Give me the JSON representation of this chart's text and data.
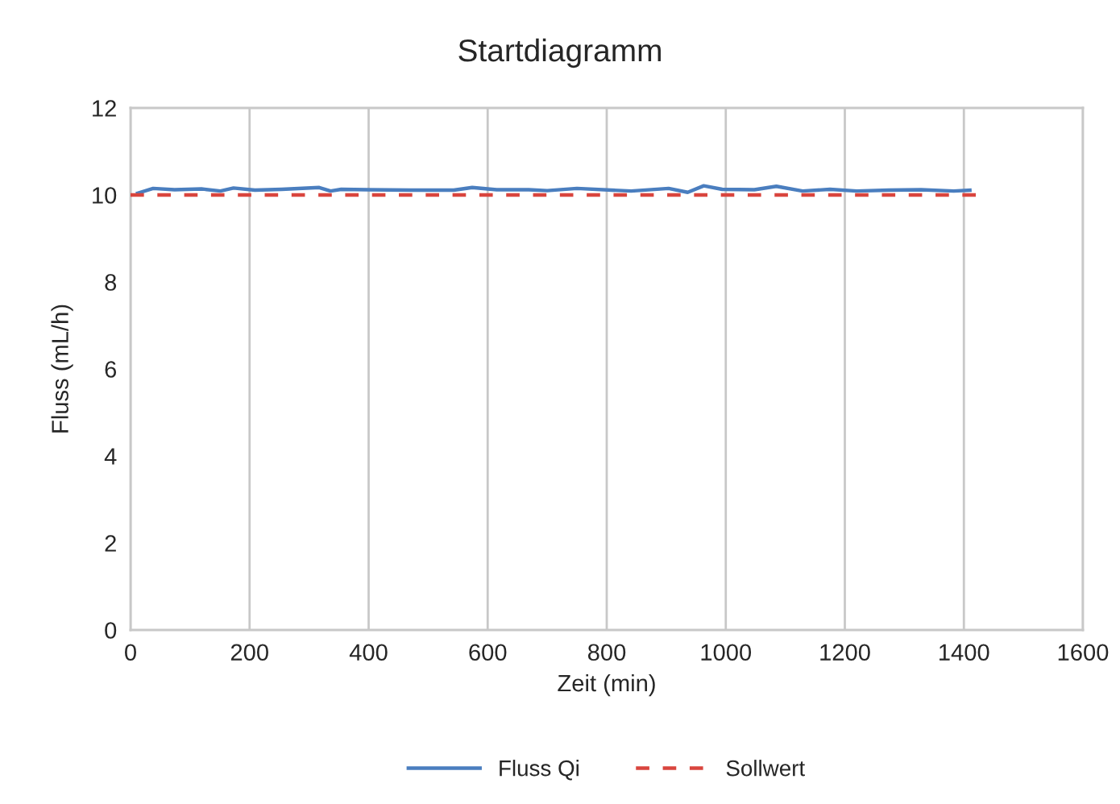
{
  "chart_data": {
    "type": "line",
    "title": "Startdiagramm",
    "xlabel": "Zeit (min)",
    "ylabel": "Fluss (mL/h)",
    "series": [
      {
        "name": "Fluss Qi",
        "color": "#4a7ebf",
        "line_style": "solid",
        "x": [
          12,
          38,
          74,
          119,
          151,
          173,
          209,
          254,
          317,
          336,
          354,
          398,
          480,
          543,
          574,
          615,
          669,
          700,
          750,
          841,
          904,
          936,
          963,
          994,
          1048,
          1085,
          1129,
          1175,
          1220,
          1274,
          1328,
          1383,
          1410
        ],
        "values": [
          10.04,
          10.15,
          10.12,
          10.14,
          10.09,
          10.16,
          10.11,
          10.13,
          10.17,
          10.09,
          10.13,
          10.12,
          10.11,
          10.11,
          10.17,
          10.12,
          10.12,
          10.1,
          10.15,
          10.09,
          10.15,
          10.06,
          10.21,
          10.13,
          10.12,
          10.2,
          10.09,
          10.13,
          10.09,
          10.11,
          10.12,
          10.09,
          10.11
        ]
      },
      {
        "name": "Sollwert",
        "color": "#d9453e",
        "line_style": "dashed",
        "x": [
          0,
          1420
        ],
        "values": [
          10,
          10
        ]
      }
    ],
    "xlim": [
      0,
      1600
    ],
    "xticks": [
      0,
      200,
      400,
      600,
      800,
      1000,
      1200,
      1400,
      1600
    ],
    "ylim": [
      0,
      12
    ],
    "yticks": [
      0,
      2,
      4,
      6,
      8,
      10,
      12
    ],
    "grid": "x",
    "legend": "bottom",
    "marker": "none"
  }
}
